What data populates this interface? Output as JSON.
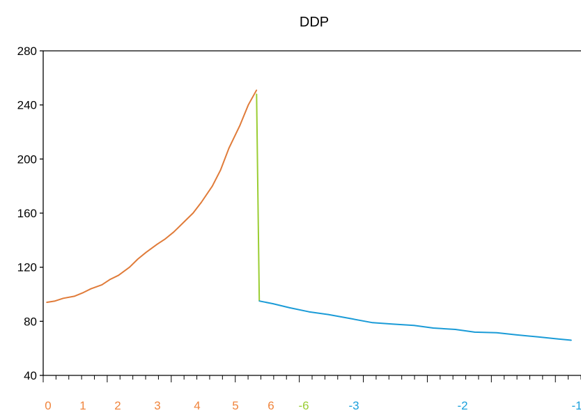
{
  "chart_data": {
    "type": "line",
    "title": "DDP",
    "ylim": [
      40,
      280
    ],
    "yticks": [
      40,
      80,
      120,
      160,
      200,
      240,
      280
    ],
    "grid": false,
    "legend": "none",
    "x_tick_groups": [
      {
        "labels": [
          "0",
          "1",
          "2",
          "3",
          "4",
          "5",
          "6"
        ],
        "color": "#F0843C"
      },
      {
        "labels": [
          "-6"
        ],
        "color": "#9ACD32"
      },
      {
        "labels": [
          "-3",
          "-2",
          "-1"
        ],
        "color": "#1AA0DC"
      }
    ],
    "series": [
      {
        "color": "#E07B39",
        "points": [
          [
            0,
            94
          ],
          [
            0.3,
            95
          ],
          [
            0.6,
            97
          ],
          [
            1.0,
            98.5
          ],
          [
            1.3,
            101
          ],
          [
            1.6,
            104
          ],
          [
            2.0,
            107
          ],
          [
            2.3,
            111
          ],
          [
            2.6,
            114
          ],
          [
            3.0,
            120
          ],
          [
            3.3,
            126
          ],
          [
            3.6,
            131
          ],
          [
            4.0,
            137
          ],
          [
            4.3,
            141
          ],
          [
            4.6,
            146
          ],
          [
            5.0,
            154
          ],
          [
            5.3,
            160
          ],
          [
            5.6,
            168
          ],
          [
            6.0,
            180
          ],
          [
            6.3,
            192
          ],
          [
            6.6,
            208
          ],
          [
            7.0,
            225
          ],
          [
            7.3,
            240
          ],
          [
            7.6,
            251
          ]
        ]
      },
      {
        "color": "#9ACD32",
        "points": [
          [
            7.6,
            248
          ],
          [
            7.7,
            95
          ]
        ]
      },
      {
        "color": "#1A9BD7",
        "points": [
          [
            7.7,
            95
          ],
          [
            8.2,
            93
          ],
          [
            8.8,
            90
          ],
          [
            9.5,
            87
          ],
          [
            10.2,
            85
          ],
          [
            11.0,
            82
          ],
          [
            11.8,
            79
          ],
          [
            12.5,
            78
          ],
          [
            13.3,
            77
          ],
          [
            14.0,
            75
          ],
          [
            14.8,
            74
          ],
          [
            15.5,
            72
          ],
          [
            16.3,
            71.5
          ],
          [
            17.0,
            70
          ],
          [
            17.8,
            68.5
          ],
          [
            18.5,
            67
          ],
          [
            19.0,
            66
          ]
        ]
      }
    ]
  }
}
